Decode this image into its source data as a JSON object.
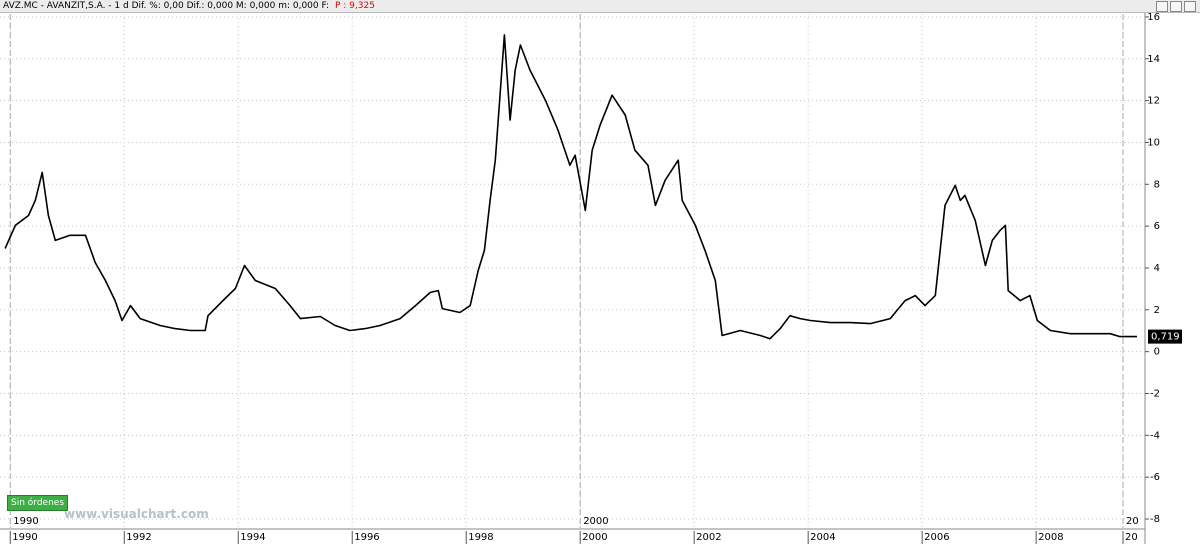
{
  "header": {
    "instrument": "AVZ.MC - AVANZIT,S.A. -  1 d  Dif. %: 0,00  Dif.: 0,000  M: 0,000  m: 0,000  F:",
    "price": "P : 9,325"
  },
  "orders_button": "Sin órdenes",
  "watermark": "www.visualchart.com",
  "chart_data": {
    "type": "line",
    "x": [
      1989.91,
      1990.09,
      1990.32,
      1990.44,
      1990.56,
      1990.67,
      1990.79,
      1991.05,
      1991.32,
      1991.49,
      1991.67,
      1991.84,
      1991.96,
      1992.11,
      1992.28,
      1992.63,
      1992.89,
      1993.16,
      1993.42,
      1993.47,
      1993.77,
      1993.95,
      1994.11,
      1994.3,
      1994.65,
      1994.91,
      1995.09,
      1995.44,
      1995.7,
      1995.96,
      1996.23,
      1996.49,
      1996.84,
      1997.11,
      1997.37,
      1997.51,
      1997.58,
      1997.89,
      1998.07,
      1998.21,
      1998.32,
      1998.42,
      1998.51,
      1998.6,
      1998.67,
      1998.77,
      1998.86,
      1998.95,
      1999.12,
      1999.39,
      1999.61,
      1999.82,
      1999.91,
      2000.09,
      2000.21,
      2000.35,
      2000.56,
      2000.79,
      2000.96,
      2001.19,
      2001.32,
      2001.49,
      2001.72,
      2001.79,
      2002.02,
      2002.19,
      2002.37,
      2002.49,
      2002.81,
      2003.16,
      2003.33,
      2003.51,
      2003.68,
      2003.86,
      2004.04,
      2004.39,
      2004.74,
      2005.09,
      2005.44,
      2005.7,
      2005.88,
      2006.05,
      2006.23,
      2006.4,
      2006.58,
      2006.67,
      2006.75,
      2006.93,
      2007.11,
      2007.23,
      2007.37,
      2007.46,
      2007.51,
      2007.72,
      2007.89,
      2008.02,
      2008.25,
      2008.6,
      2008.95,
      2009.3,
      2009.47,
      2009.77
    ],
    "series": [
      {
        "name": "AVZ.MC",
        "color": "#000000",
        "values": [
          4.93,
          6.04,
          6.51,
          7.23,
          8.57,
          6.51,
          5.32,
          5.56,
          5.56,
          4.26,
          3.4,
          2.44,
          1.49,
          2.2,
          1.58,
          1.25,
          1.1,
          1.01,
          1.01,
          1.72,
          2.54,
          3.02,
          4.12,
          3.4,
          3.02,
          2.2,
          1.58,
          1.68,
          1.25,
          1.01,
          1.1,
          1.25,
          1.58,
          2.2,
          2.83,
          2.92,
          2.06,
          1.87,
          2.2,
          3.88,
          4.84,
          7.23,
          9.15,
          12.5,
          15.14,
          11.07,
          13.46,
          14.66,
          13.46,
          12.02,
          10.59,
          8.91,
          9.39,
          6.75,
          9.63,
          10.83,
          12.26,
          11.31,
          9.63,
          8.91,
          6.99,
          8.19,
          9.15,
          7.23,
          6.04,
          4.84,
          3.4,
          0.77,
          1.01,
          0.77,
          0.62,
          1.1,
          1.72,
          1.58,
          1.49,
          1.39,
          1.39,
          1.34,
          1.58,
          2.44,
          2.68,
          2.2,
          2.68,
          6.99,
          7.95,
          7.23,
          7.47,
          6.28,
          4.12,
          5.32,
          5.8,
          6.04,
          2.92,
          2.44,
          2.68,
          1.49,
          1.01,
          0.86,
          0.86,
          0.86,
          0.72,
          0.719
        ]
      }
    ],
    "last_price": {
      "value": 0.719,
      "label": "0,719"
    },
    "xlim": [
      1989.82,
      2009.91
    ],
    "ylim": [
      -8.43,
      16.14
    ],
    "xticks": [
      1990,
      1992,
      1994,
      1996,
      1998,
      2000,
      2002,
      2004,
      2006,
      2008,
      {
        "value": 2010,
        "label": "20"
      }
    ],
    "decade_ticks": [
      1990,
      2000,
      {
        "value": 2010,
        "label": "20"
      }
    ],
    "yticks": [
      16,
      14,
      12,
      10,
      8,
      6,
      4,
      2,
      0,
      -2,
      -4,
      -6,
      -8
    ],
    "grid": true
  }
}
